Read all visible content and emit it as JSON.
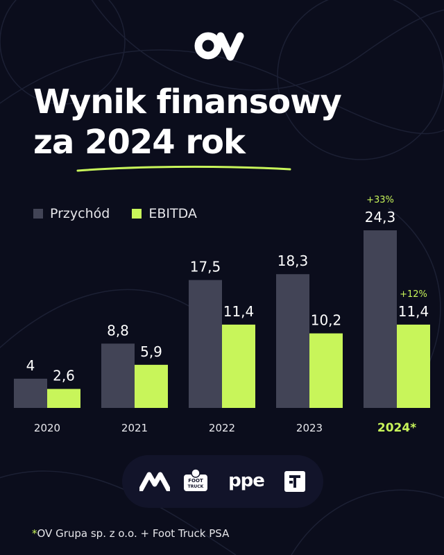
{
  "brand": {
    "logo_text": "OV",
    "accent": "#c8f55a",
    "revenue_color": "#424456",
    "background": "#0b0d1c"
  },
  "title": {
    "line1": "Wynik finansowy",
    "line2": "za 2024 rok"
  },
  "chart_data": {
    "type": "bar",
    "categories": [
      "2020",
      "2021",
      "2022",
      "2023",
      "2024*"
    ],
    "highlight_category": "2024*",
    "series": [
      {
        "name": "Przychód",
        "color": "#424456",
        "values": [
          4,
          8.8,
          17.5,
          18.3,
          24.3
        ],
        "labels": [
          "4",
          "8,8",
          "17,5",
          "18,3",
          "24,3"
        ]
      },
      {
        "name": "EBITDA",
        "color": "#c8f55a",
        "values": [
          2.6,
          5.9,
          11.4,
          10.2,
          11.4
        ],
        "labels": [
          "2,6",
          "5,9",
          "11,4",
          "10,2",
          "11,4"
        ]
      }
    ],
    "annotations": [
      {
        "category": "2024*",
        "series": "Przychód",
        "text": "+33%"
      },
      {
        "category": "2024*",
        "series": "EBITDA",
        "text": "+12%"
      }
    ],
    "ylim": [
      0,
      24.3
    ],
    "grid": false,
    "legend": "top-left"
  },
  "partner_logos": [
    "m-logo-icon",
    "foot-truck-logo-icon",
    "ppe-logo-icon",
    "t-logo-icon"
  ],
  "partner_logo_texts": {
    "foot_truck": "FOOT TRUCK",
    "ppe": "ppe"
  },
  "footnote": {
    "star": "*",
    "text": "OV Grupa sp. z o.o. + Foot Truck PSA"
  }
}
